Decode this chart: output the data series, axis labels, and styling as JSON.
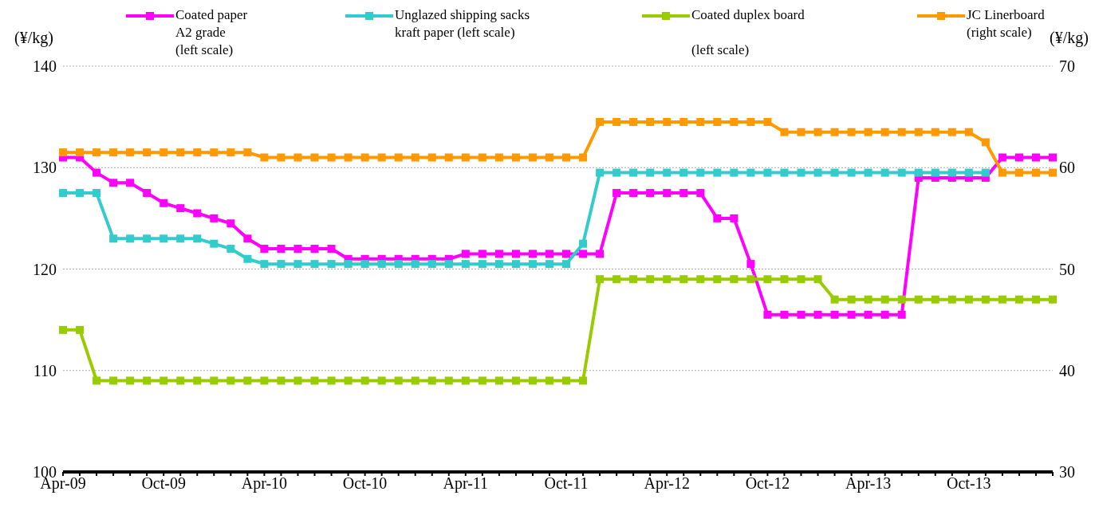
{
  "chart_data": {
    "type": "line",
    "ylabel": "(¥/kg)",
    "y2label": "(¥/kg)",
    "categories": [
      "Apr-09",
      null,
      null,
      null,
      null,
      null,
      "Oct-09",
      null,
      null,
      null,
      null,
      null,
      "Apr-10",
      null,
      null,
      null,
      null,
      null,
      "Oct-10",
      null,
      null,
      null,
      null,
      null,
      "Apr-11",
      null,
      null,
      null,
      null,
      null,
      "Oct-11",
      null,
      null,
      null,
      null,
      null,
      "Apr-12",
      null,
      null,
      null,
      null,
      null,
      "Oct-12",
      null,
      null,
      null,
      null,
      null,
      "Apr-13",
      null,
      null,
      null,
      null,
      null,
      "Oct-13",
      null,
      null,
      null,
      null,
      null
    ],
    "series": [
      {
        "name": "Coated paper\nA2 grade\n(left scale)",
        "color": "#ff00ff",
        "values": [
          131,
          131,
          129.5,
          128.5,
          128.5,
          127.5,
          126.5,
          126,
          125.5,
          125,
          124.5,
          123,
          122,
          122,
          122,
          122,
          122,
          121,
          121,
          121,
          121,
          121,
          121,
          121,
          121.5,
          121.5,
          121.5,
          121.5,
          121.5,
          121.5,
          121.5,
          121.5,
          121.5,
          127.5,
          127.5,
          127.5,
          127.5,
          127.5,
          127.5,
          125,
          125,
          120.5,
          115.5,
          115.5,
          115.5,
          115.5,
          115.5,
          115.5,
          115.5,
          115.5,
          115.5,
          129,
          129,
          129,
          129,
          129,
          131,
          131,
          131,
          131
        ]
      },
      {
        "name": "Unglazed shipping sacks\nkraft paper (left scale)",
        "color": "#33cccc",
        "values": [
          127.5,
          127.5,
          127.5,
          123,
          123,
          123,
          123,
          123,
          123,
          122.5,
          122,
          121,
          120.5,
          120.5,
          120.5,
          120.5,
          120.5,
          120.5,
          120.5,
          120.5,
          120.5,
          120.5,
          120.5,
          120.5,
          120.5,
          120.5,
          120.5,
          120.5,
          120.5,
          120.5,
          120.5,
          122.5,
          129.5,
          129.5,
          129.5,
          129.5,
          129.5,
          129.5,
          129.5,
          129.5,
          129.5,
          129.5,
          129.5,
          129.5,
          129.5,
          129.5,
          129.5,
          129.5,
          129.5,
          129.5,
          129.5,
          129.5,
          129.5,
          129.5,
          129.5,
          129.5,
          null,
          null,
          null,
          null
        ]
      },
      {
        "name": "Coated duplex board\n\n(left scale)",
        "color": "#99cc00",
        "values": [
          114,
          114,
          109,
          109,
          109,
          109,
          109,
          109,
          109,
          109,
          109,
          109,
          109,
          109,
          109,
          109,
          109,
          109,
          109,
          109,
          109,
          109,
          109,
          109,
          109,
          109,
          109,
          109,
          109,
          109,
          109,
          109,
          119,
          119,
          119,
          119,
          119,
          119,
          119,
          119,
          119,
          119,
          119,
          119,
          119,
          119,
          117,
          117,
          117,
          117,
          117,
          117,
          117,
          117,
          117,
          117,
          117,
          117,
          117,
          117
        ]
      },
      {
        "name": "JC Linerboard\n(right scale)",
        "color": "#ff9900",
        "axis": "y2",
        "values": [
          61.5,
          61.5,
          61.5,
          61.5,
          61.5,
          61.5,
          61.5,
          61.5,
          61.5,
          61.5,
          61.5,
          61.5,
          61,
          61,
          61,
          61,
          61,
          61,
          61,
          61,
          61,
          61,
          61,
          61,
          61,
          61,
          61,
          61,
          61,
          61,
          61,
          61,
          64.5,
          64.5,
          64.5,
          64.5,
          64.5,
          64.5,
          64.5,
          64.5,
          64.5,
          64.5,
          64.5,
          63.5,
          63.5,
          63.5,
          63.5,
          63.5,
          63.5,
          63.5,
          63.5,
          63.5,
          63.5,
          63.5,
          63.5,
          62.5,
          59.5,
          59.5,
          59.5,
          59.5
        ]
      }
    ],
    "ylim": [
      100,
      140
    ],
    "yticks": [
      100,
      110,
      120,
      130,
      140
    ],
    "y2lim": [
      30,
      70
    ],
    "y2ticks": [
      30,
      40,
      50,
      60,
      70
    ],
    "grid": "y",
    "legend": "top",
    "marker": "square",
    "line_style": "solid"
  }
}
